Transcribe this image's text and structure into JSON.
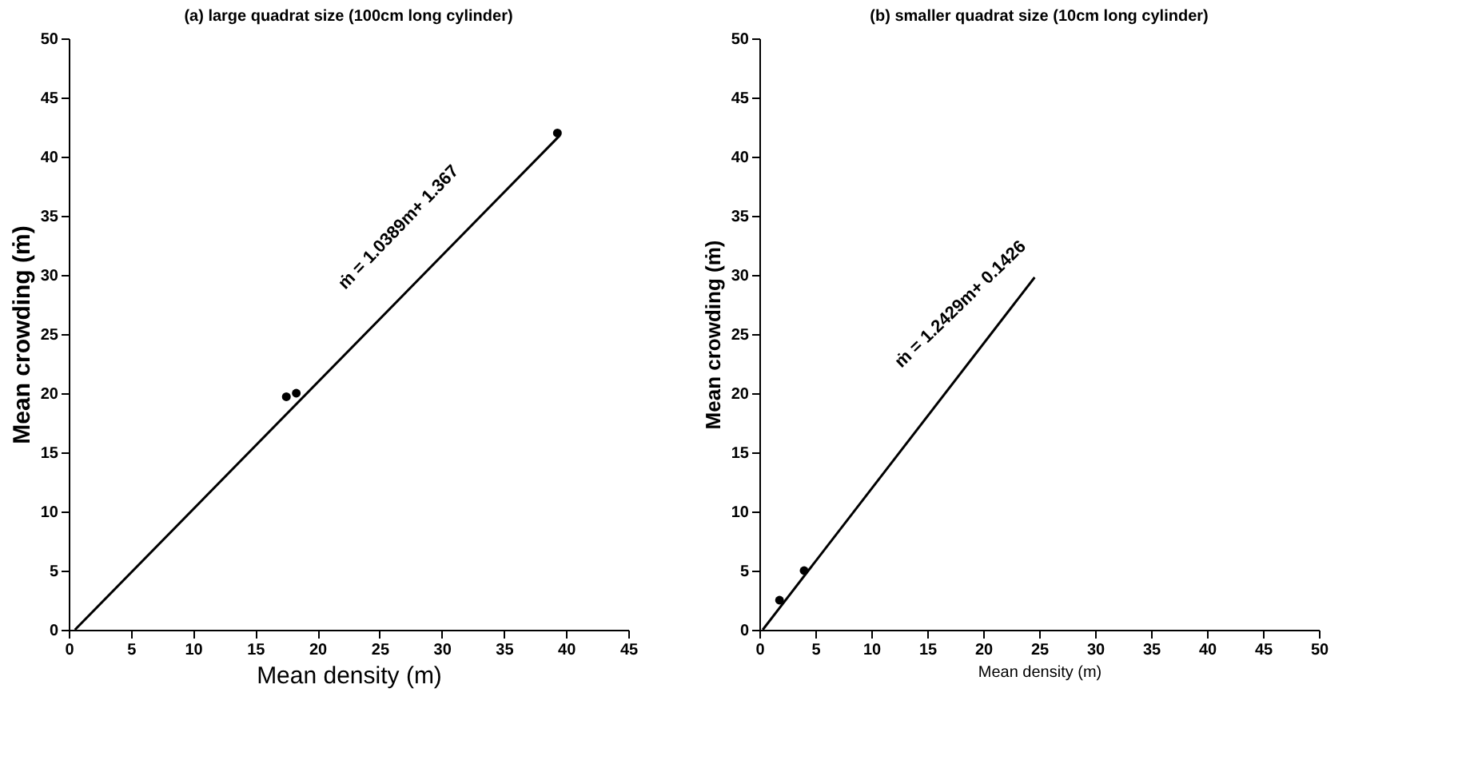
{
  "chart_data": [
    {
      "type": "scatter",
      "title": "(a) large quadrat size (100cm long cylinder)",
      "xlabel": "Mean density (m)",
      "ylabel": "Mean crowding (ṁ)",
      "xlim": [
        0,
        45
      ],
      "xticks": [
        0,
        5,
        10,
        15,
        20,
        25,
        30,
        35,
        40,
        45
      ],
      "ylim": [
        0,
        50
      ],
      "yticks": [
        0,
        5,
        10,
        15,
        20,
        25,
        30,
        35,
        40,
        45,
        50
      ],
      "grid": false,
      "series": [
        {
          "color": "#000000",
          "marker": "circle",
          "x": [
            17.5,
            18.3,
            39.3
          ],
          "values": [
            19.7,
            20,
            42
          ]
        },
        {
          "type": "line",
          "color": "#000000",
          "line_style": "solid",
          "x": [
            0.5,
            39.5
          ],
          "values": [
            0,
            41.8
          ]
        }
      ],
      "annotations": [
        "ṁ = 1.0389m+ 1.367"
      ]
    },
    {
      "type": "scatter",
      "title": "(b) smaller quadrat size (10cm long cylinder)",
      "xlabel": "Mean density (m)",
      "ylabel": "Mean crowding (ṁ)",
      "xlim": [
        0,
        50
      ],
      "xticks": [
        0,
        5,
        10,
        15,
        20,
        25,
        30,
        35,
        40,
        45,
        50
      ],
      "ylim": [
        0,
        50
      ],
      "yticks": [
        0,
        5,
        10,
        15,
        20,
        25,
        30,
        35,
        40,
        45,
        50
      ],
      "grid": false,
      "series": [
        {
          "color": "#000000",
          "marker": "circle",
          "x": [
            1.8,
            4
          ],
          "values": [
            2.5,
            5
          ]
        },
        {
          "type": "line",
          "color": "#000000",
          "line_style": "solid",
          "x": [
            0.3,
            24.6
          ],
          "values": [
            0,
            29.8
          ]
        }
      ],
      "annotations": [
        "ṁ = 1.2429m+ 0.1426"
      ]
    }
  ]
}
